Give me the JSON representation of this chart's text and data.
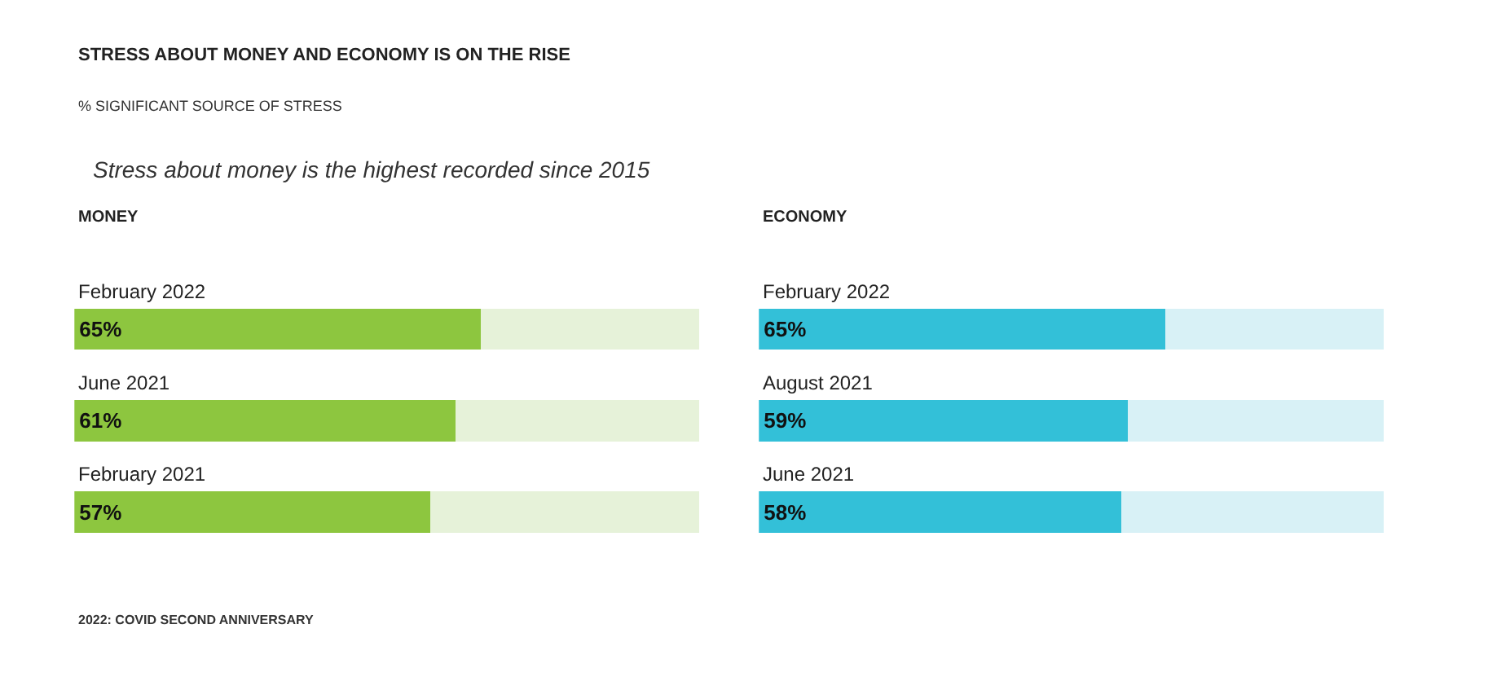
{
  "chart_data": [
    {
      "type": "other",
      "title": "STRESS ABOUT MONEY AND ECONOMY IS ON THE RISE",
      "subtitle": "% SIGNIFICANT SOURCE OF STRESS",
      "annotations": [
        "Stress about money is the highest recorded since 2015",
        "2022: COVID SECOND ANNIVERSARY"
      ]
    },
    {
      "type": "bar",
      "orientation": "horizontal",
      "stacked": true,
      "title": "MONEY",
      "categories": [
        "February 2022",
        "June 2021",
        "February 2021"
      ],
      "xlim": [
        0,
        100
      ],
      "tick_labels": false,
      "series": [
        {
          "color": "#8dc63f",
          "values": [
            65,
            61,
            57
          ],
          "value_labels": [
            "65%",
            "61%",
            "57%"
          ]
        },
        {
          "color": "#e6f2d9",
          "values": [
            35,
            39,
            43
          ]
        }
      ]
    },
    {
      "type": "bar",
      "orientation": "horizontal",
      "stacked": true,
      "title": "ECONOMY",
      "categories": [
        "February 2022",
        "August 2021",
        "June 2021"
      ],
      "xlim": [
        0,
        100
      ],
      "tick_labels": false,
      "series": [
        {
          "color": "#33c0d8",
          "values": [
            65,
            59,
            58
          ],
          "value_labels": [
            "65%",
            "59%",
            "58%"
          ]
        },
        {
          "color": "#d8f1f6",
          "values": [
            35,
            41,
            42
          ]
        }
      ]
    }
  ]
}
